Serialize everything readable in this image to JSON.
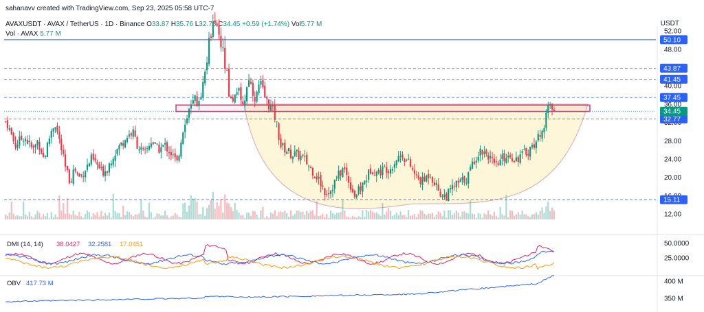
{
  "header": {
    "credit": "sahanavv created with TradingView.com, Sep 23, 2025 05:58 UTC-7",
    "symbol": "AVAXUSDT · AVAX / TetherUS · 1D · Binance",
    "ohlc": {
      "o_label": "O",
      "o": "33.87",
      "h_label": "H",
      "h": "35.76",
      "l_label": "L",
      "l": "32.75",
      "c_label": "C",
      "c": "34.45",
      "change": "+0.59 (+1.74%)",
      "vol_label": "Vol",
      "vol": "5.77 M"
    },
    "vol_line": {
      "label": "Vol · AVAX",
      "value": "5.77 M"
    },
    "currency": "USDT"
  },
  "chart_data": [
    {
      "type": "candlestick",
      "title": "AVAXUSDT · AVAX / TetherUS · 1D · Binance",
      "yaxis_ticks": [
        "52.00",
        "48.00",
        "44.00",
        "40.00",
        "36.00",
        "32.00",
        "28.00",
        "24.00",
        "20.00",
        "16.00",
        "12.00"
      ],
      "ylim": [
        10.5,
        53
      ],
      "horizontal_levels": [
        {
          "value": 50.1,
          "label": "50.10",
          "style": "solid"
        },
        {
          "value": 43.87,
          "label": "43.87",
          "style": "dashed"
        },
        {
          "value": 41.45,
          "label": "41.45",
          "style": "dashed"
        },
        {
          "value": 37.45,
          "label": "37.45",
          "style": "dashed"
        },
        {
          "value": 32.77,
          "label": "32.77",
          "style": "dashed"
        },
        {
          "value": 15.11,
          "label": "15.11",
          "style": "dashed"
        }
      ],
      "last_price": {
        "value": 34.45,
        "label": "34.45"
      },
      "resistance_zone": [
        34.4,
        35.8
      ],
      "pattern": "rounded bottom",
      "colors": {
        "up": "#089981",
        "down": "#f23645",
        "level": "#2962ff",
        "zone": "#d6437f",
        "pattern_fill": "#fdf6d8"
      },
      "path_anchors": [
        [
          0,
          33
        ],
        [
          10,
          32
        ],
        [
          22,
          27
        ],
        [
          35,
          29
        ],
        [
          48,
          26
        ],
        [
          55,
          28
        ],
        [
          64,
          24
        ],
        [
          74,
          30
        ],
        [
          80,
          32
        ],
        [
          88,
          27
        ],
        [
          95,
          22
        ],
        [
          102,
          19
        ],
        [
          108,
          22
        ],
        [
          116,
          20
        ],
        [
          125,
          22
        ],
        [
          133,
          24
        ],
        [
          140,
          23
        ],
        [
          148,
          21
        ],
        [
          156,
          22
        ],
        [
          165,
          25
        ],
        [
          175,
          27
        ],
        [
          185,
          29
        ],
        [
          193,
          30
        ],
        [
          200,
          27
        ],
        [
          210,
          25
        ],
        [
          220,
          28
        ],
        [
          230,
          26
        ],
        [
          240,
          27
        ],
        [
          250,
          25
        ],
        [
          258,
          23
        ],
        [
          264,
          29
        ],
        [
          270,
          33
        ],
        [
          276,
          35
        ],
        [
          283,
          37
        ],
        [
          290,
          36
        ],
        [
          296,
          42
        ],
        [
          300,
          46
        ],
        [
          304,
          48
        ],
        [
          308,
          52
        ],
        [
          312,
          53
        ],
        [
          316,
          51
        ],
        [
          320,
          49
        ],
        [
          326,
          45
        ],
        [
          330,
          41
        ],
        [
          334,
          38
        ],
        [
          338,
          36
        ],
        [
          342,
          38
        ],
        [
          346,
          40
        ],
        [
          350,
          36
        ],
        [
          356,
          37
        ],
        [
          362,
          42
        ],
        [
          367,
          39
        ],
        [
          372,
          37
        ],
        [
          378,
          41
        ],
        [
          384,
          38
        ],
        [
          390,
          36
        ],
        [
          396,
          35
        ],
        [
          402,
          32
        ],
        [
          408,
          27
        ],
        [
          416,
          26
        ],
        [
          424,
          25
        ],
        [
          432,
          25
        ],
        [
          442,
          24
        ],
        [
          452,
          22
        ],
        [
          462,
          20
        ],
        [
          472,
          17
        ],
        [
          480,
          17
        ],
        [
          490,
          20
        ],
        [
          500,
          22
        ],
        [
          508,
          19
        ],
        [
          516,
          16
        ],
        [
          522,
          17
        ],
        [
          530,
          19
        ],
        [
          540,
          22
        ],
        [
          550,
          21
        ],
        [
          560,
          22
        ],
        [
          568,
          22
        ],
        [
          576,
          24
        ],
        [
          585,
          25
        ],
        [
          595,
          23
        ],
        [
          605,
          20
        ],
        [
          615,
          19
        ],
        [
          625,
          21
        ],
        [
          635,
          18
        ],
        [
          643,
          16
        ],
        [
          650,
          16
        ],
        [
          660,
          18
        ],
        [
          670,
          19
        ],
        [
          680,
          20
        ],
        [
          690,
          24
        ],
        [
          700,
          26
        ],
        [
          710,
          25
        ],
        [
          720,
          22
        ],
        [
          730,
          24
        ],
        [
          740,
          25
        ],
        [
          750,
          24
        ],
        [
          760,
          25
        ],
        [
          770,
          26
        ],
        [
          780,
          28
        ],
        [
          786,
          29
        ],
        [
          792,
          32
        ],
        [
          797,
          35
        ],
        [
          801,
          35.5
        ],
        [
          806,
          34.45
        ]
      ]
    },
    {
      "type": "line",
      "title": "DMI (14, 14)",
      "series": [
        {
          "name": "38.0427",
          "color": "#e91e63"
        },
        {
          "name": "32.2581",
          "color": "#2962ff"
        },
        {
          "name": "17.0451",
          "color": "#ff9800"
        }
      ],
      "yaxis_ticks": [
        "50.0000",
        "25.0000"
      ]
    },
    {
      "type": "line",
      "title": "OBV",
      "series": [
        {
          "name": "417.73 M",
          "color": "#2962ff"
        }
      ],
      "yaxis_ticks": [
        "400 M",
        "350 M"
      ]
    }
  ]
}
